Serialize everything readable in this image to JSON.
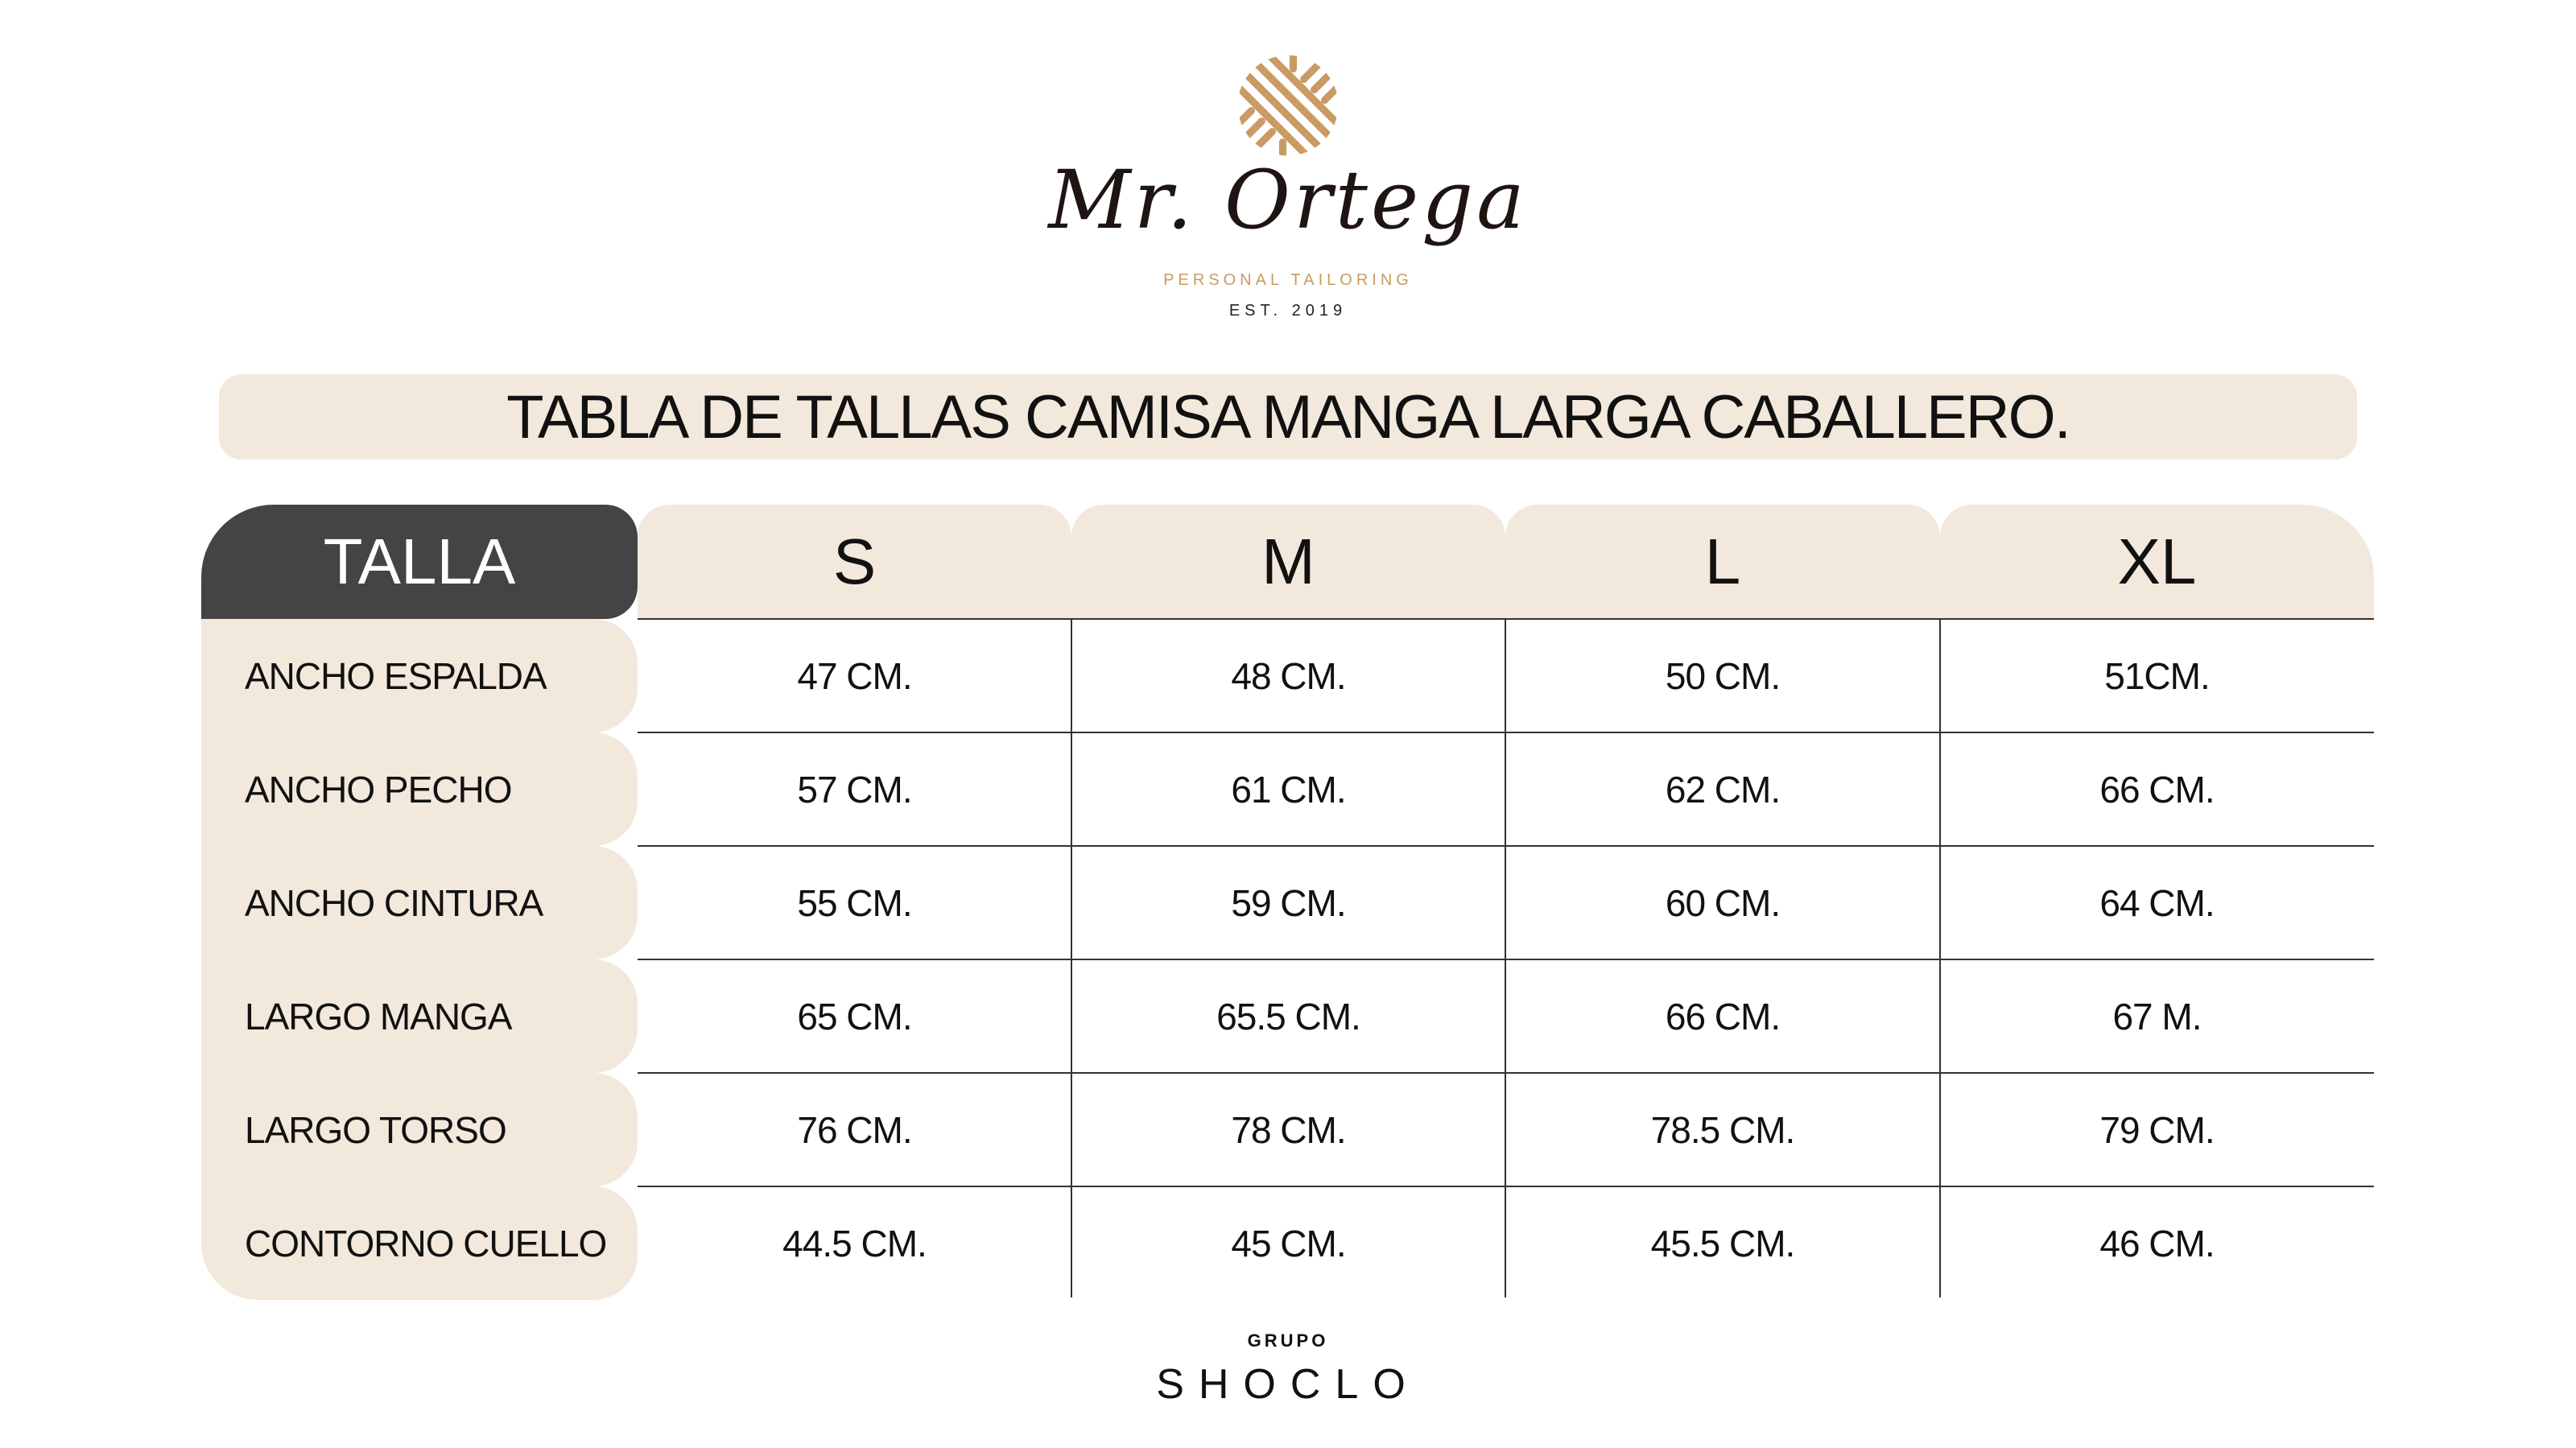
{
  "brand": {
    "name": "Mr. Ortega",
    "tagline": "PERSONAL TAILORING",
    "established": "EST. 2019",
    "accent_color": "#c99b63"
  },
  "title": "TABLA DE TALLAS CAMISA MANGA LARGA CABALLERO.",
  "table": {
    "corner_label": "TALLA",
    "sizes": [
      "S",
      "M",
      "L",
      "XL"
    ],
    "rows": [
      {
        "label": "ANCHO ESPALDA",
        "values": [
          "47 CM.",
          "48 CM.",
          "50 CM.",
          "51CM."
        ]
      },
      {
        "label": "ANCHO PECHO",
        "values": [
          "57 CM.",
          "61 CM.",
          "62 CM.",
          "66 CM."
        ]
      },
      {
        "label": "ANCHO CINTURA",
        "values": [
          "55 CM.",
          "59 CM.",
          "60 CM.",
          "64 CM."
        ]
      },
      {
        "label": "LARGO MANGA",
        "values": [
          "65 CM.",
          "65.5 CM.",
          "66 CM.",
          "67  M."
        ]
      },
      {
        "label": "LARGO TORSO",
        "values": [
          "76 CM.",
          "78 CM.",
          "78.5 CM.",
          "79 CM."
        ]
      },
      {
        "label": "CONTORNO CUELLO",
        "values": [
          "44.5 CM.",
          "45 CM.",
          "45.5 CM.",
          "46 CM."
        ]
      }
    ],
    "header_color": "#444444",
    "beige_color": "#f2e8dc"
  },
  "footer": {
    "group_label": "GRUPO",
    "company": "SHOCLO"
  }
}
